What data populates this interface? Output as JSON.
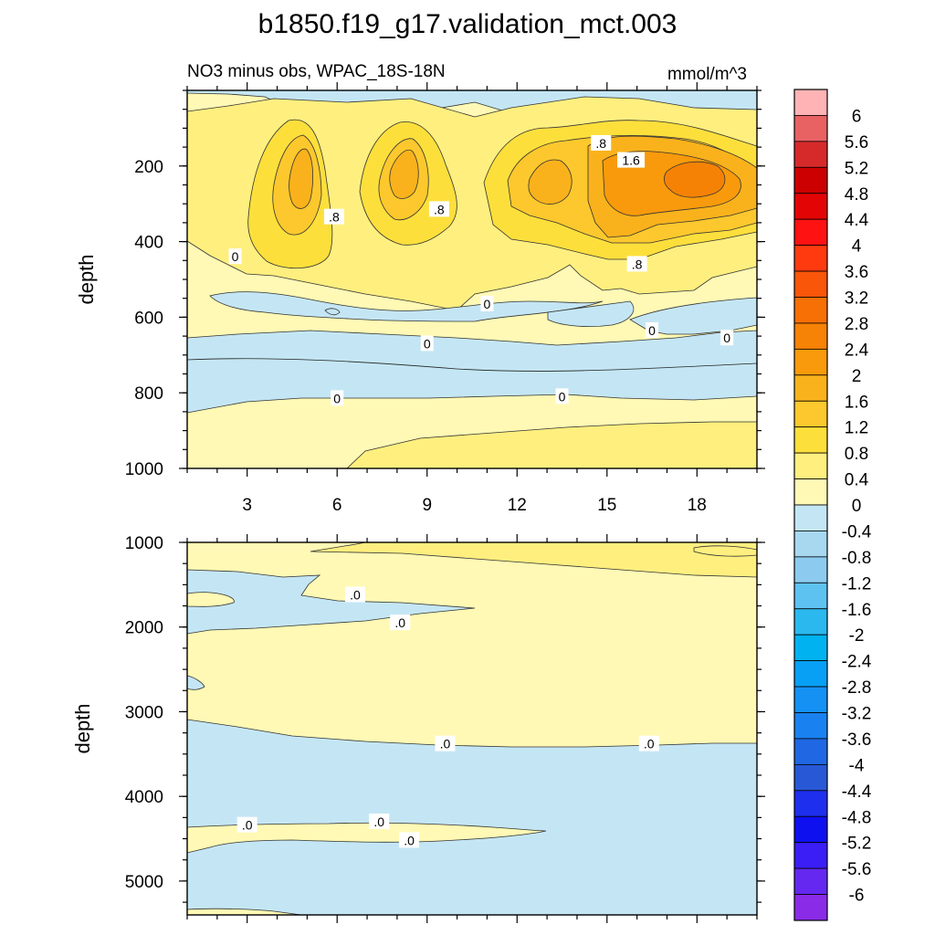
{
  "figure": {
    "title": "b1850.f19_g17.validation_mct.003",
    "left_string": "NO3 minus obs, WPAC_18S-18N",
    "right_string": "mmol/m^3"
  },
  "colors": {
    "neg_light": "#c4e6f4",
    "neg_mid": "#a7d8f0",
    "pos_0": "#fff9b5",
    "pos_04": "#ffef7f",
    "pos_08": "#fddf3c",
    "pos_12": "#fcc82d",
    "pos_16": "#fab21c",
    "pos_20": "#f89a0b",
    "pos_24": "#f68205"
  },
  "chart_data": [
    {
      "type": "heatmap",
      "panel": "upper",
      "ylabel": "depth",
      "xlim": [
        1,
        20
      ],
      "ylim": [
        1000,
        0
      ],
      "x_ticks": [
        3,
        6,
        9,
        12,
        15,
        18
      ],
      "y_ticks": [
        200,
        400,
        600,
        800,
        1000
      ],
      "contour_labels": [
        {
          "text": "0",
          "x": 2.6,
          "y": 440
        },
        {
          "text": ".8",
          "x": 5.9,
          "y": 335
        },
        {
          "text": ".8",
          "x": 9.4,
          "y": 315
        },
        {
          "text": ".8",
          "x": 14.8,
          "y": 140
        },
        {
          "text": "1.6",
          "x": 15.8,
          "y": 185
        },
        {
          "text": ".8",
          "x": 16.0,
          "y": 460
        },
        {
          "text": "0",
          "x": 11.0,
          "y": 565
        },
        {
          "text": "0",
          "x": 16.5,
          "y": 635
        },
        {
          "text": "0",
          "x": 9.0,
          "y": 670
        },
        {
          "text": "0",
          "x": 19.0,
          "y": 655
        },
        {
          "text": "0",
          "x": 6.0,
          "y": 815
        },
        {
          "text": "0",
          "x": 13.5,
          "y": 810
        }
      ]
    },
    {
      "type": "heatmap",
      "panel": "lower",
      "ylabel": "depth",
      "xlim": [
        1,
        20
      ],
      "ylim": [
        5400,
        1000
      ],
      "y_ticks": [
        1000,
        2000,
        3000,
        4000,
        5000
      ],
      "contour_labels": [
        {
          "text": ".0",
          "x": 6.6,
          "y": 1620
        },
        {
          "text": ".0",
          "x": 8.1,
          "y": 1950
        },
        {
          "text": ".0",
          "x": 9.6,
          "y": 3380
        },
        {
          "text": ".0",
          "x": 16.4,
          "y": 3380
        },
        {
          "text": ".0",
          "x": 3.0,
          "y": 4340
        },
        {
          "text": ".0",
          "x": 7.4,
          "y": 4300
        },
        {
          "text": ".0",
          "x": 8.4,
          "y": 4520
        }
      ]
    }
  ],
  "colorbar": {
    "labels": [
      "6",
      "5.6",
      "5.2",
      "4.8",
      "4.4",
      "4",
      "3.6",
      "3.2",
      "2.8",
      "2.4",
      "2",
      "1.6",
      "1.2",
      "0.8",
      "0.4",
      "0",
      "-0.4",
      "-0.8",
      "-1.2",
      "-1.6",
      "-2",
      "-2.4",
      "-2.8",
      "-3.2",
      "-3.6",
      "-4",
      "-4.4",
      "-4.8",
      "-5.2",
      "-5.6",
      "-6"
    ],
    "colors": [
      "#ffb3b5",
      "#e86264",
      "#d62a2a",
      "#cc0000",
      "#e30505",
      "#ff1212",
      "#ff3a0f",
      "#f9560a",
      "#f77005",
      "#f68206",
      "#f89a0b",
      "#fab21c",
      "#fcc82d",
      "#fddf3c",
      "#ffef7f",
      "#fff9b5",
      "#c4e6f4",
      "#a7d8f0",
      "#8ccbef",
      "#5ec2f1",
      "#2bb8ee",
      "#00b3f0",
      "#07a0f5",
      "#1491f3",
      "#1a82f0",
      "#2068e3",
      "#2858d6",
      "#1f2fee",
      "#0e10f0",
      "#3b1ef5",
      "#6428f0",
      "#8a2be8"
    ]
  }
}
